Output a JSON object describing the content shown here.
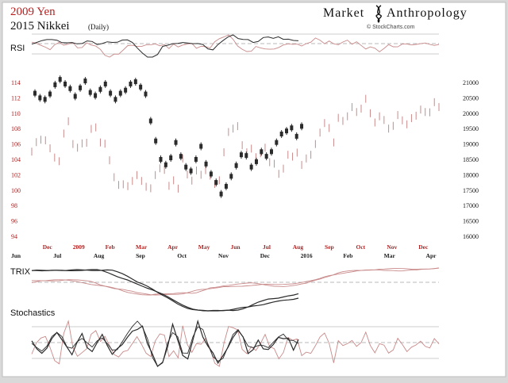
{
  "header": {
    "title_primary": "2009 Yen",
    "title_secondary": "2015 Nikkei",
    "title_secondary_note": "(Daily)",
    "brand_left": "Market",
    "brand_right": "Anthropology",
    "source": "© StockCharts.com"
  },
  "panels": {
    "rsi_label": "RSI",
    "trix_label": "TRIX",
    "stoch_label": "Stochastics"
  },
  "colors": {
    "primary_series": "#2b2b2b",
    "secondary_series": "#c98a8a",
    "title_red": "#b22222",
    "tick_red": "#b22222",
    "tick_black": "#1a1a1a",
    "panel_bg": "#ffffff"
  },
  "chart_data": {
    "type": "line",
    "left_axis_ticks": [
      "114",
      "112",
      "110",
      "108",
      "106",
      "104",
      "102",
      "100",
      "98",
      "96",
      "94"
    ],
    "right_axis_ticks": [
      "21000",
      "20500",
      "20000",
      "19500",
      "19000",
      "18500",
      "18000",
      "17500",
      "17000",
      "16500",
      "16000"
    ],
    "left_ylim": [
      94,
      114
    ],
    "right_ylim": [
      16000,
      21000
    ],
    "x_ticks_top_red": [
      "Dec",
      "2009",
      "Feb",
      "Mar",
      "Apr",
      "May",
      "Jun",
      "Jul",
      "Aug",
      "Sep",
      "Oct",
      "Nov",
      "Dec"
    ],
    "x_ticks_bottom_black": [
      "Jun",
      "Jul",
      "Aug",
      "Sep",
      "Oct",
      "Nov",
      "Dec",
      "2016",
      "Feb",
      "Mar",
      "Apr"
    ],
    "series": [
      {
        "name": "2009 Yen",
        "values": [
          112.6,
          112.0,
          111.8,
          112.5,
          113.7,
          114.4,
          113.8,
          113.2,
          112.2,
          113.3,
          114.2,
          112.7,
          112.3,
          113.1,
          113.8,
          112.6,
          111.8,
          112.6,
          113.0,
          113.8,
          114.1,
          113.4,
          112.5,
          109.0,
          106.4,
          104.0,
          103.3,
          104.2,
          106.2,
          104.4,
          103.0,
          102.5,
          104.0,
          105.7,
          103.4,
          102.1,
          101.0,
          99.5,
          100.5,
          101.8,
          103.2,
          104.6,
          104.5,
          103.0,
          103.7,
          105.0,
          104.4,
          105.0,
          106.2,
          107.3,
          107.7,
          108.1,
          107.0,
          108.3
        ]
      },
      {
        "name": "2015 Nikkei",
        "values": [
          18750,
          19060,
          19140,
          19120,
          18860,
          18560,
          18440,
          19340,
          19740,
          19000,
          18880,
          19020,
          19040,
          19490,
          19540,
          19050,
          19010,
          18470,
          17920,
          17670,
          17690,
          17630,
          17800,
          17990,
          17800,
          17610,
          17560,
          17990,
          18210,
          18160,
          17640,
          17820,
          17550,
          18530,
          18010,
          17810,
          18140,
          18000,
          18150,
          17970,
          17700,
          17820,
          18730,
          19390,
          19500,
          19580,
          18960,
          18730,
          18850,
          18570,
          18700,
          18880,
          18410,
          18360,
          18030,
          18200,
          18650,
          18590,
          18720,
          18320,
          18530,
          18650,
          19000,
          19370,
          19680,
          19520,
          19050,
          19850,
          19750,
          19900,
          20200,
          20040,
          20150,
          20470,
          20000,
          19700,
          19900,
          19780,
          19500,
          19590,
          19940,
          19770,
          19640,
          19840,
          19920,
          20120,
          20040,
          20030,
          20360,
          20200
        ]
      }
    ]
  }
}
